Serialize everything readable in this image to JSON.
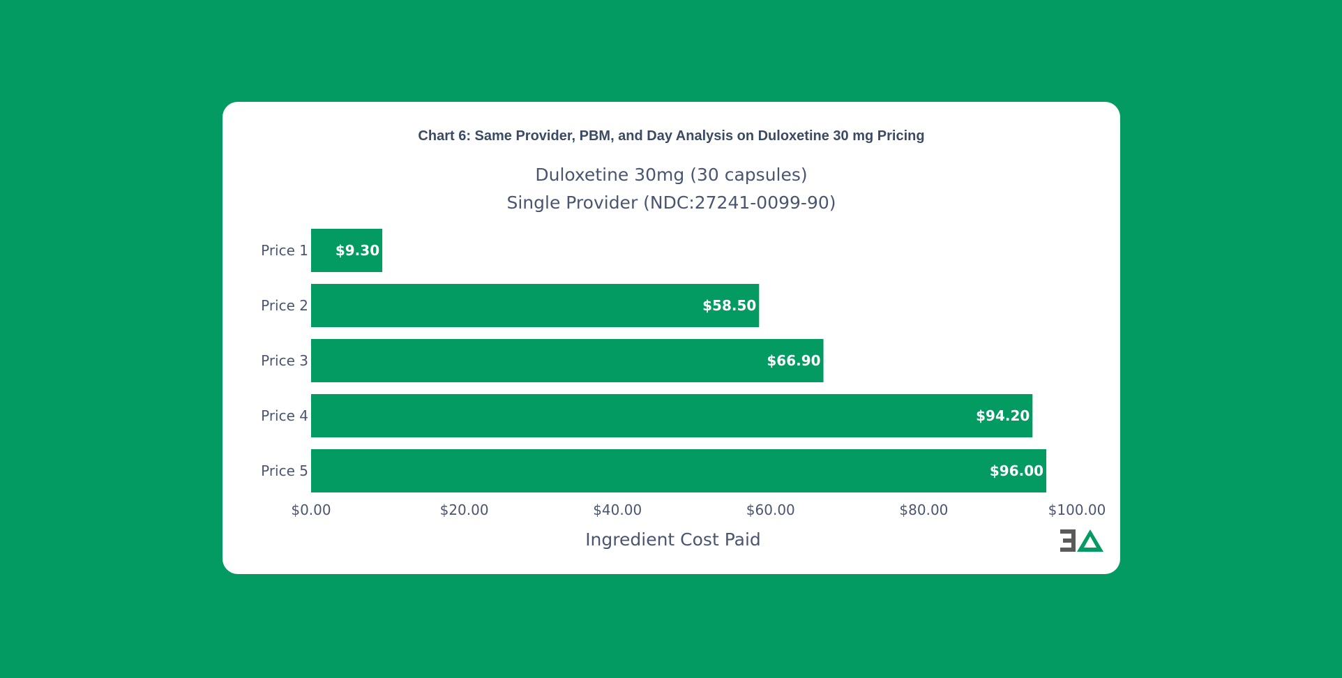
{
  "header": {
    "title": "Chart 6: Same Provider, PBM, and Day Analysis on Duloxetine 30 mg Pricing"
  },
  "chart_data": {
    "type": "bar",
    "orientation": "horizontal",
    "title_lines": [
      "Duloxetine 30mg (30 capsules)",
      "Single Provider (NDC:27241-0099-90)"
    ],
    "categories": [
      "Price 1",
      "Price 2",
      "Price 3",
      "Price 4",
      "Price 5"
    ],
    "values": [
      9.3,
      58.5,
      66.9,
      94.2,
      96.0
    ],
    "data_labels": [
      "$9.30",
      "$58.50",
      "$66.90",
      "$94.20",
      "$96.00"
    ],
    "xlabel": "Ingredient Cost Paid",
    "ylabel": "",
    "xlim": [
      0,
      100
    ],
    "xticks": [
      0,
      20,
      40,
      60,
      80,
      100
    ],
    "xtick_labels": [
      "$0.00",
      "$20.00",
      "$40.00",
      "$60.00",
      "$80.00",
      "$100.00"
    ],
    "grid": false,
    "bar_color": "#049b63"
  },
  "colors": {
    "background": "#049b63",
    "card": "#ffffff",
    "text": "#4a5570",
    "logo_gray": "#5a5a5a",
    "logo_green": "#049b63"
  },
  "logo": {
    "icon": "3-delta-logo-icon"
  }
}
